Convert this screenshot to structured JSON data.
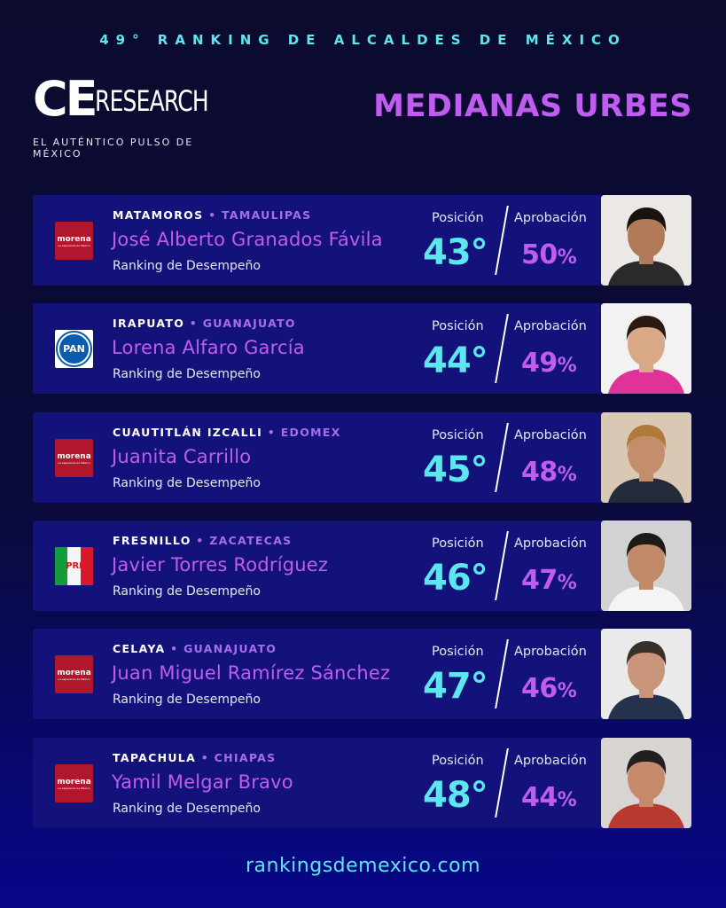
{
  "header": {
    "top_title": "49° RANKING DE ALCALDES DE MÉXICO",
    "logo_ce": "CE",
    "logo_research": "RESEARCH",
    "tagline": "EL AUTÉNTICO PULSO DE MÉXICO",
    "section_title": "MEDIANAS URBES"
  },
  "labels": {
    "position": "Posición",
    "approval": "Aprobación",
    "ranking": "Ranking de Desempeño"
  },
  "mayors": [
    {
      "city": "MATAMOROS",
      "state": "TAMAULIPAS",
      "name": "José Alberto Granados Fávila",
      "party": "morena",
      "position": "43°",
      "approval": "50",
      "photo_bg": "#ece8e6",
      "skin": "#b07a58",
      "hair": "#1a1410",
      "shirt": "#2a2a2a"
    },
    {
      "city": "IRAPUATO",
      "state": "GUANAJUATO",
      "name": "Lorena Alfaro García",
      "party": "PAN",
      "position": "44°",
      "approval": "49",
      "photo_bg": "#f2f2f2",
      "skin": "#d9a886",
      "hair": "#2a1a12",
      "shirt": "#e0339a"
    },
    {
      "city": "CUAUTITLÁN IZCALLI",
      "state": "EDOMEX",
      "name": "Juanita Carrillo",
      "party": "morena",
      "position": "45°",
      "approval": "48",
      "photo_bg": "#d9c9b4",
      "skin": "#c48e6c",
      "hair": "#b07a3a",
      "shirt": "#232a3a"
    },
    {
      "city": "FRESNILLO",
      "state": "ZACATECAS",
      "name": "Javier Torres Rodríguez",
      "party": "PRI",
      "position": "46°",
      "approval": "47",
      "photo_bg": "#d2d2d2",
      "skin": "#c08a68",
      "hair": "#1e1a18",
      "shirt": "#f4f4f4"
    },
    {
      "city": "CELAYA",
      "state": "GUANAJUATO",
      "name": "Juan Miguel Ramírez Sánchez",
      "party": "morena",
      "position": "47°",
      "approval": "46",
      "photo_bg": "#eaeaea",
      "skin": "#c9957a",
      "hair": "#3a302a",
      "shirt": "#24324e"
    },
    {
      "city": "TAPACHULA",
      "state": "CHIAPAS",
      "name": "Yamil Melgar Bravo",
      "party": "morena",
      "position": "48°",
      "approval": "44",
      "photo_bg": "#d8d4d2",
      "skin": "#c48a6a",
      "hair": "#22201e",
      "shirt": "#b83a2e"
    }
  ],
  "party_logos": {
    "morena": "morena",
    "morena_sub": "La esperanza de México",
    "pan": "PAN",
    "pri": "PRI"
  },
  "footer": "rankingsdemexico.com",
  "colors": {
    "cyan": "#5ee6f0",
    "purple": "#c15cf0",
    "card": "#12127a"
  }
}
